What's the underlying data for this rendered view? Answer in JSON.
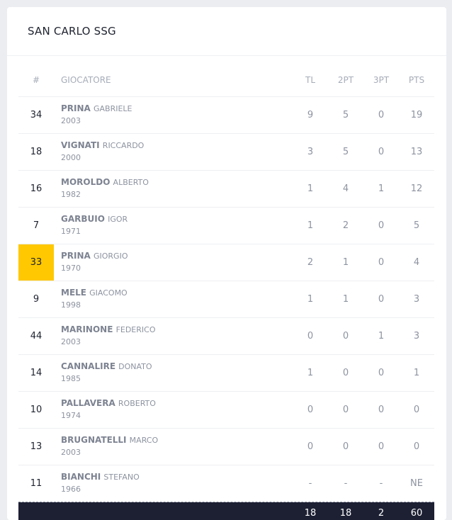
{
  "team": {
    "name": "SAN CARLO SSG"
  },
  "columns": {
    "number": "#",
    "player": "GIOCATORE",
    "tl": "TL",
    "two": "2PT",
    "three": "3PT",
    "pts": "PTS"
  },
  "players": [
    {
      "number": "34",
      "last": "PRINA",
      "first": "GABRIELE",
      "year": "2003",
      "tl": "9",
      "two": "5",
      "three": "0",
      "pts": "19"
    },
    {
      "number": "18",
      "last": "VIGNATI",
      "first": "RICCARDO",
      "year": "2000",
      "tl": "3",
      "two": "5",
      "three": "0",
      "pts": "13"
    },
    {
      "number": "16",
      "last": "MOROLDO",
      "first": "ALBERTO",
      "year": "1982",
      "tl": "1",
      "two": "4",
      "three": "1",
      "pts": "12"
    },
    {
      "number": "7",
      "last": "GARBUIO",
      "first": "IGOR",
      "year": "1971",
      "tl": "1",
      "two": "2",
      "three": "0",
      "pts": "5"
    },
    {
      "number": "33",
      "last": "PRINA",
      "first": "GIORGIO",
      "year": "1970",
      "tl": "2",
      "two": "1",
      "three": "0",
      "pts": "4"
    },
    {
      "number": "9",
      "last": "MELE",
      "first": "GIACOMO",
      "year": "1998",
      "tl": "1",
      "two": "1",
      "three": "0",
      "pts": "3"
    },
    {
      "number": "44",
      "last": "MARINONE",
      "first": "FEDERICO",
      "year": "2003",
      "tl": "0",
      "two": "0",
      "three": "1",
      "pts": "3"
    },
    {
      "number": "14",
      "last": "CANNALIRE",
      "first": "DONATO",
      "year": "1985",
      "tl": "1",
      "two": "0",
      "three": "0",
      "pts": "1"
    },
    {
      "number": "10",
      "last": "PALLAVERA",
      "first": "ROBERTO",
      "year": "1974",
      "tl": "0",
      "two": "0",
      "three": "0",
      "pts": "0"
    },
    {
      "number": "13",
      "last": "BRUGNATELLI",
      "first": "MARCO",
      "year": "2003",
      "tl": "0",
      "two": "0",
      "three": "0",
      "pts": "0"
    },
    {
      "number": "11",
      "last": "BIANCHI",
      "first": "STEFANO",
      "year": "1966",
      "tl": "-",
      "two": "-",
      "three": "-",
      "pts": "NE"
    }
  ],
  "totals": {
    "tl": "18",
    "two": "18",
    "three": "2",
    "pts": "60"
  },
  "highlight_color": "#ffc800"
}
